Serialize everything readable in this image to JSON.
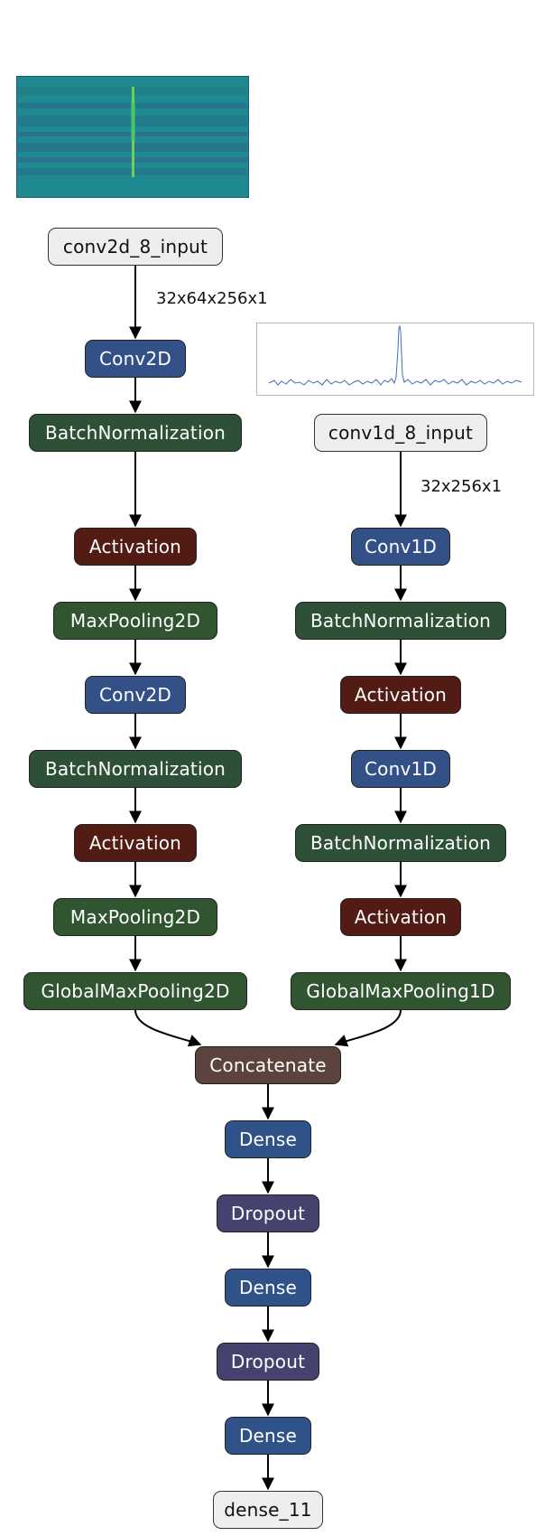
{
  "diagram": {
    "colors": {
      "conv": "#335087",
      "batchnorm": "#2d5037",
      "activation": "#521b13",
      "pooling": "#315531",
      "concatenate": "#5c433d",
      "dense": "#2f5389",
      "dropout": "#46426f",
      "io": "#eeeeee"
    },
    "branch_2d": {
      "input": "conv2d_8_input",
      "input_shape": "32x64x256x1",
      "layers": [
        "Conv2D",
        "BatchNormalization",
        "Activation",
        "MaxPooling2D",
        "Conv2D",
        "BatchNormalization",
        "Activation",
        "MaxPooling2D",
        "GlobalMaxPooling2D"
      ]
    },
    "branch_1d": {
      "input": "conv1d_8_input",
      "input_shape": "32x256x1",
      "layers": [
        "Conv1D",
        "BatchNormalization",
        "Activation",
        "Conv1D",
        "BatchNormalization",
        "Activation",
        "GlobalMaxPooling1D"
      ]
    },
    "merge": {
      "layers": [
        "Concatenate",
        "Dense",
        "Dropout",
        "Dense",
        "Dropout",
        "Dense"
      ],
      "output": "dense_11"
    }
  }
}
